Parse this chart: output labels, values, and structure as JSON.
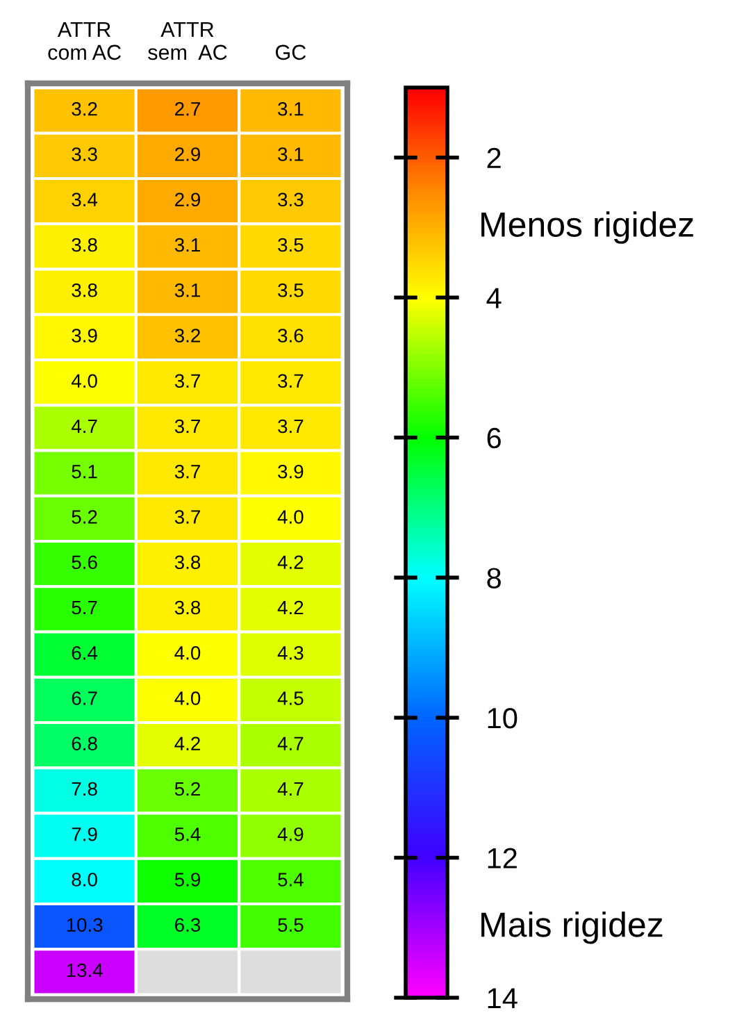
{
  "chart_data": {
    "type": "heatmap",
    "categories": [
      "ATTR\ncom AC",
      "ATTR\nsem  AC",
      "GC"
    ],
    "data_labels": true,
    "clim": [
      14,
      1
    ],
    "cticks": [
      2,
      4,
      6,
      8,
      10,
      12,
      14
    ],
    "annotations": [
      "Menos rigidez",
      "Mais rigidez"
    ],
    "cell_labels": [
      [
        "3.2",
        "2.7",
        "3.1"
      ],
      [
        "3.3",
        "2.9",
        "3.1"
      ],
      [
        "3.4",
        "2.9",
        "3.3"
      ],
      [
        "3.8",
        "3.1",
        "3.5"
      ],
      [
        "3.8",
        "3.1",
        "3.5"
      ],
      [
        "3.9",
        "3.2",
        "3.6"
      ],
      [
        "4.0",
        "3.7",
        "3.7"
      ],
      [
        "4.7",
        "3.7",
        "3.7"
      ],
      [
        "5.1",
        "3.7",
        "3.9"
      ],
      [
        "5.2",
        "3.7",
        "4.0"
      ],
      [
        "5.6",
        "3.8",
        "4.2"
      ],
      [
        "5.7",
        "3.8",
        "4.2"
      ],
      [
        "6.4",
        "4.0",
        "4.3"
      ],
      [
        "6.7",
        "4.0",
        "4.5"
      ],
      [
        "6.8",
        "4.2",
        "4.7"
      ],
      [
        "7.8",
        "5.2",
        "4.7"
      ],
      [
        "7.9",
        "5.4",
        "4.9"
      ],
      [
        "8.0",
        "5.9",
        "5.4"
      ],
      [
        "10.3",
        "6.3",
        "5.5"
      ],
      [
        "13.4",
        null,
        null
      ]
    ],
    "y_categories": [
      null,
      null,
      null,
      null,
      null,
      null,
      null,
      null,
      null,
      null,
      null,
      null,
      null,
      null,
      null,
      null,
      null,
      null,
      null,
      null
    ],
    "cells": [
      [
        3.2,
        2.7,
        3.1
      ],
      [
        3.3,
        2.9,
        3.1
      ],
      [
        3.4,
        2.9,
        3.3
      ],
      [
        3.8,
        3.1,
        3.5
      ],
      [
        3.8,
        3.1,
        3.5
      ],
      [
        3.9,
        3.2,
        3.6
      ],
      [
        4.0,
        3.7,
        3.7
      ],
      [
        4.7,
        3.7,
        3.7
      ],
      [
        5.1,
        3.7,
        3.9
      ],
      [
        5.2,
        3.7,
        4.0
      ],
      [
        5.6,
        3.8,
        4.2
      ],
      [
        5.7,
        3.8,
        4.2
      ],
      [
        6.4,
        4.0,
        4.3
      ],
      [
        6.7,
        4.0,
        4.5
      ],
      [
        6.8,
        4.2,
        4.7
      ],
      [
        7.8,
        5.2,
        4.7
      ],
      [
        7.9,
        5.4,
        4.9
      ],
      [
        8.0,
        5.9,
        5.4
      ],
      [
        10.3,
        6.3,
        5.5
      ],
      [
        13.4,
        null,
        null
      ]
    ]
  }
}
